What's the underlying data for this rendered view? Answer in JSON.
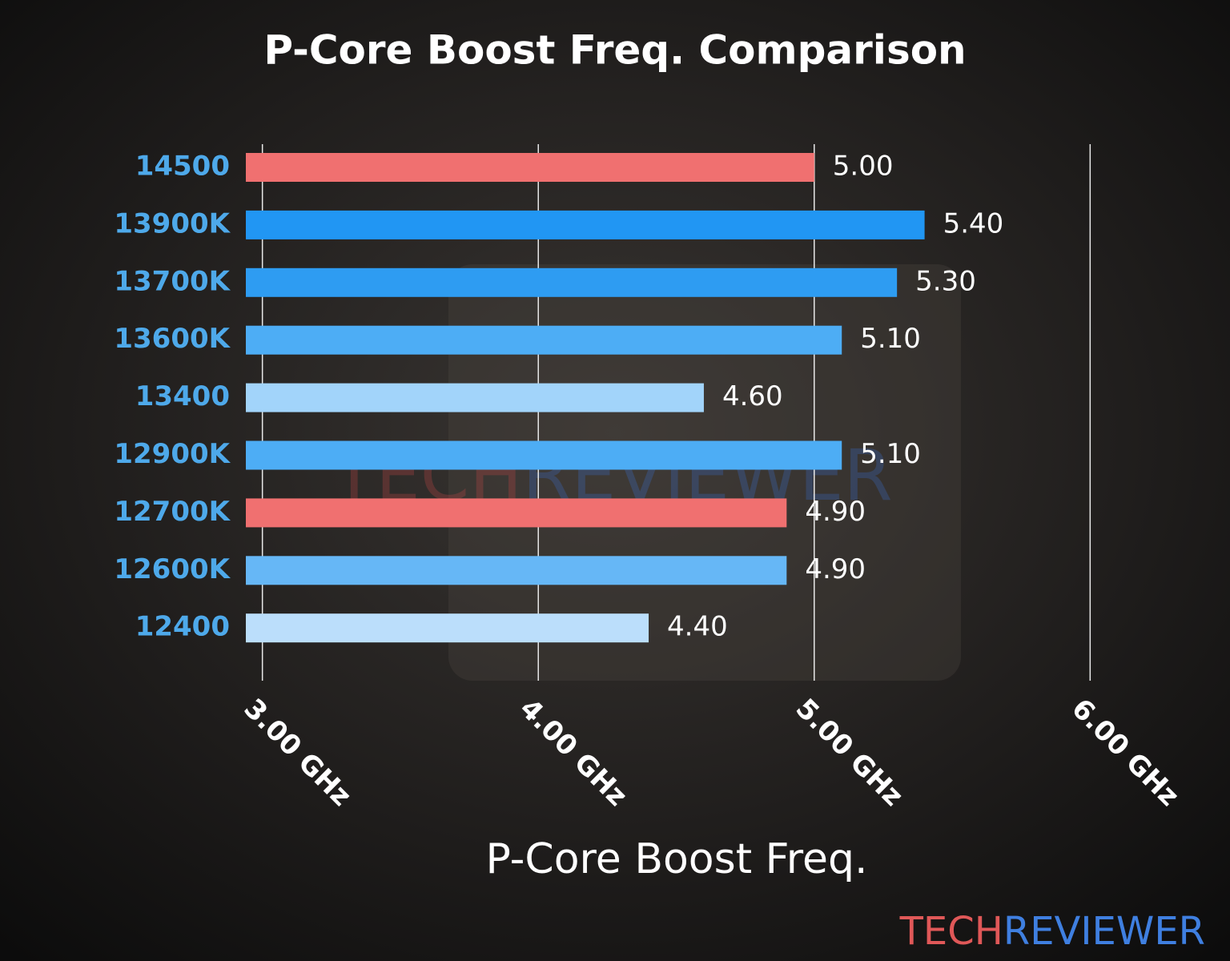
{
  "chart_data": {
    "type": "barh",
    "title": "P-Core Boost Freq. Comparison",
    "xlabel": "P-Core Boost Freq.",
    "categories": [
      "14500",
      "13900K",
      "13700K",
      "13600K",
      "13400",
      "12900K",
      "12700K",
      "12600K",
      "12400"
    ],
    "values": [
      5.0,
      5.4,
      5.3,
      5.1,
      4.6,
      5.1,
      4.9,
      4.9,
      4.4
    ],
    "value_labels": [
      "5.00",
      "5.40",
      "5.30",
      "5.10",
      "4.60",
      "5.10",
      "4.90",
      "4.90",
      "4.40"
    ],
    "colors": [
      "#f07070",
      "#2196f3",
      "#2e9cf2",
      "#4dadf5",
      "#a2d4fa",
      "#4dadf5",
      "#f07070",
      "#66b7f6",
      "#bbdefb"
    ],
    "xlim": [
      2.94,
      6.06
    ],
    "xticks": [
      {
        "value": 3,
        "label": "3.00 GHz"
      },
      {
        "value": 4,
        "label": "4.00 GHz"
      },
      {
        "value": 5,
        "label": "5.00 GHz"
      },
      {
        "value": 6,
        "label": "6.00 GHz"
      }
    ],
    "grid": true,
    "watermark": [
      "TECH",
      "REVIEWER"
    ]
  }
}
